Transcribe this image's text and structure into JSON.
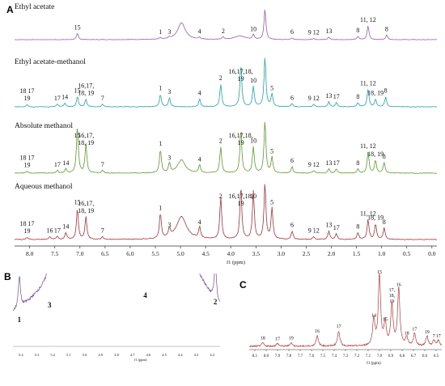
{
  "panel_letters": [
    "A",
    "B",
    "C"
  ],
  "axis_unit": "f1 (ppm)",
  "colors": {
    "ethyl_acetate": "#9b59b6",
    "ethyl_acetate_methanol": "#1ba7b0",
    "absolute_methanol": "#5a9e2c",
    "aqueous_methanol": "#b0303a",
    "panel_b": "#7a4aa6",
    "panel_c": "#c23a3a"
  },
  "chart_data": [
    {
      "type": "line",
      "panel": "A",
      "xlabel": "f1 (ppm)",
      "xlim": [
        8.3,
        -0.1
      ],
      "x_ticks": [
        "8.0",
        "7.5",
        "7.0",
        "6.5",
        "6.0",
        "5.5",
        "5.0",
        "4.5",
        "4.0",
        "3.5",
        "3.0",
        "2.5",
        "2.0",
        "1.5",
        "1.0",
        "0.5",
        "0.0"
      ],
      "series": [
        {
          "name": "Ethyl acetate",
          "peaks": [
            {
              "x": 7.05,
              "h": 0.2,
              "label": "15"
            },
            {
              "x": 5.4,
              "h": 0.05,
              "label": "1"
            },
            {
              "x": 5.22,
              "h": 0.05,
              "label": "3"
            },
            {
              "x": 4.98,
              "h": 0.55,
              "w": 0.09
            },
            {
              "x": 4.62,
              "h": 0.06,
              "label": "4"
            },
            {
              "x": 4.15,
              "h": 0.08,
              "label": "2"
            },
            {
              "x": 3.82,
              "h": 0.12,
              "w": 0.12
            },
            {
              "x": 3.55,
              "h": 0.15,
              "label": "10"
            },
            {
              "x": 3.32,
              "h": 1.0
            },
            {
              "x": 2.78,
              "h": 0.05,
              "label": "6"
            },
            {
              "x": 2.35,
              "h": 0.04,
              "label": "9 12"
            },
            {
              "x": 2.05,
              "h": 0.08,
              "label": "13"
            },
            {
              "x": 1.47,
              "h": 0.1,
              "label": "8"
            },
            {
              "x": 1.27,
              "h": 0.45,
              "label": "11, 12"
            },
            {
              "x": 0.9,
              "h": 0.15,
              "label": "8"
            }
          ]
        },
        {
          "name": "Ethyl acetate-methanol",
          "peaks": [
            {
              "x": 8.05,
              "h": 0.05,
              "label": "18 17 19"
            },
            {
              "x": 7.45,
              "h": 0.05,
              "label": "17"
            },
            {
              "x": 7.3,
              "h": 0.07,
              "label": "14"
            },
            {
              "x": 7.05,
              "h": 0.2,
              "label": "15"
            },
            {
              "x": 6.88,
              "h": 0.15,
              "label": "16,17, 18, 19"
            },
            {
              "x": 6.55,
              "h": 0.05,
              "label": "7"
            },
            {
              "x": 5.4,
              "h": 0.25,
              "label": "1"
            },
            {
              "x": 5.22,
              "h": 0.18,
              "label": "3"
            },
            {
              "x": 4.62,
              "h": 0.15,
              "label": "4"
            },
            {
              "x": 4.2,
              "h": 0.45,
              "label": "2"
            },
            {
              "x": 3.8,
              "h": 0.85,
              "label": "16,17,18, 19"
            },
            {
              "x": 3.55,
              "h": 0.4,
              "label": "10"
            },
            {
              "x": 3.32,
              "h": 1.0
            },
            {
              "x": 3.18,
              "h": 0.25,
              "label": "5"
            },
            {
              "x": 2.78,
              "h": 0.06,
              "label": "6"
            },
            {
              "x": 2.35,
              "h": 0.05,
              "label": "9 12"
            },
            {
              "x": 2.05,
              "h": 0.1,
              "label": "13"
            },
            {
              "x": 1.9,
              "h": 0.08,
              "label": "17"
            },
            {
              "x": 1.47,
              "h": 0.08,
              "label": "8"
            },
            {
              "x": 1.27,
              "h": 0.35,
              "label": "11, 12"
            },
            {
              "x": 1.12,
              "h": 0.15,
              "label": "18, 19"
            },
            {
              "x": 0.92,
              "h": 0.2,
              "label": "8"
            }
          ]
        },
        {
          "name": "Absolute methanol",
          "peaks": [
            {
              "x": 8.05,
              "h": 0.04,
              "label": "18 17 19"
            },
            {
              "x": 7.45,
              "h": 0.05,
              "label": "17"
            },
            {
              "x": 7.28,
              "h": 0.08,
              "label": "14"
            },
            {
              "x": 7.05,
              "h": 0.9,
              "label": "15"
            },
            {
              "x": 6.88,
              "h": 0.55,
              "label": "16,17, 18, 19"
            },
            {
              "x": 6.55,
              "h": 0.05,
              "label": "7"
            },
            {
              "x": 5.4,
              "h": 0.45,
              "label": "1"
            },
            {
              "x": 5.22,
              "h": 0.18,
              "label": "3"
            },
            {
              "x": 4.98,
              "h": 0.25,
              "w": 0.09
            },
            {
              "x": 4.62,
              "h": 0.15,
              "label": "4"
            },
            {
              "x": 4.2,
              "h": 0.5,
              "label": "2"
            },
            {
              "x": 3.8,
              "h": 0.85,
              "label": "16,17,18, 19"
            },
            {
              "x": 3.55,
              "h": 0.5,
              "label": "10"
            },
            {
              "x": 3.32,
              "h": 1.0
            },
            {
              "x": 3.18,
              "h": 0.3,
              "label": "5"
            },
            {
              "x": 2.78,
              "h": 0.12,
              "label": "6"
            },
            {
              "x": 2.35,
              "h": 0.05,
              "label": "9 12"
            },
            {
              "x": 2.05,
              "h": 0.08,
              "label": "13"
            },
            {
              "x": 1.9,
              "h": 0.08,
              "label": "17"
            },
            {
              "x": 1.47,
              "h": 0.08,
              "label": "8"
            },
            {
              "x": 1.27,
              "h": 0.4,
              "label": "11, 12"
            },
            {
              "x": 1.12,
              "h": 0.25,
              "label": "18, 19"
            },
            {
              "x": 0.95,
              "h": 0.2,
              "label": "8"
            }
          ]
        },
        {
          "name": "Aqueous methanol",
          "peaks": [
            {
              "x": 8.05,
              "h": 0.04,
              "label": "18 17 19"
            },
            {
              "x": 7.6,
              "h": 0.05,
              "label": "16"
            },
            {
              "x": 7.45,
              "h": 0.05,
              "label": "17"
            },
            {
              "x": 7.28,
              "h": 0.12,
              "label": "14"
            },
            {
              "x": 7.05,
              "h": 0.55,
              "label": "15"
            },
            {
              "x": 6.88,
              "h": 0.4,
              "label": "16,17, 18, 19"
            },
            {
              "x": 6.55,
              "h": 0.05,
              "label": "7"
            },
            {
              "x": 5.4,
              "h": 0.45,
              "label": "1"
            },
            {
              "x": 5.22,
              "h": 0.15,
              "label": "3"
            },
            {
              "x": 4.98,
              "h": 0.4,
              "w": 0.12
            },
            {
              "x": 4.62,
              "h": 0.2,
              "label": "4"
            },
            {
              "x": 4.2,
              "h": 0.75,
              "label": "2"
            },
            {
              "x": 3.8,
              "h": 0.95,
              "label": "16,17,18, 19"
            },
            {
              "x": 3.55,
              "h": 0.85,
              "label": "10"
            },
            {
              "x": 3.32,
              "h": 1.0
            },
            {
              "x": 3.18,
              "h": 0.55,
              "label": "5"
            },
            {
              "x": 2.78,
              "h": 0.15,
              "label": "6"
            },
            {
              "x": 2.35,
              "h": 0.05,
              "label": "9 12"
            },
            {
              "x": 2.05,
              "h": 0.15,
              "label": "13"
            },
            {
              "x": 1.9,
              "h": 0.1,
              "label": "17"
            },
            {
              "x": 1.47,
              "h": 0.12,
              "label": "8"
            },
            {
              "x": 1.27,
              "h": 0.35,
              "label": "11, 12"
            },
            {
              "x": 1.12,
              "h": 0.28,
              "label": "18, 19"
            },
            {
              "x": 0.95,
              "h": 0.2,
              "label": "8"
            }
          ]
        }
      ]
    },
    {
      "type": "line",
      "panel": "B",
      "xlim": [
        5.45,
        4.15
      ],
      "x_ticks": [
        "5.4",
        "5.3",
        "5.2",
        "5.1",
        "5.0",
        "4.9",
        "4.8",
        "4.7",
        "4.6",
        "4.5",
        "4.4",
        "4.3",
        "4.2"
      ],
      "series": [
        {
          "name": "",
          "peaks": [
            {
              "x": 5.41,
              "h": 0.55,
              "label": "1"
            },
            {
              "x": 5.22,
              "h": 0.72,
              "label": "3"
            },
            {
              "x": 4.62,
              "h": 0.62,
              "label": "4"
            },
            {
              "x": 4.18,
              "h": 0.65,
              "label": "2"
            }
          ]
        }
      ]
    },
    {
      "type": "line",
      "panel": "C",
      "xlim": [
        8.15,
        6.45
      ],
      "x_ticks": [
        "8.1",
        "8.0",
        "7.9",
        "7.8",
        "7.7",
        "7.6",
        "7.5",
        "7.4",
        "7.3",
        "7.2",
        "7.1",
        "7.0",
        "6.9",
        "6.8",
        "6.7",
        "6.6",
        "6.5"
      ],
      "series": [
        {
          "name": "",
          "peaks": [
            {
              "x": 8.03,
              "h": 0.05,
              "label": "18"
            },
            {
              "x": 7.9,
              "h": 0.04,
              "label": "17"
            },
            {
              "x": 7.78,
              "h": 0.05,
              "label": "19"
            },
            {
              "x": 7.55,
              "h": 0.15,
              "label": "16"
            },
            {
              "x": 7.36,
              "h": 0.22,
              "label": "17"
            },
            {
              "x": 7.05,
              "h": 0.38,
              "label": "14"
            },
            {
              "x": 7.0,
              "h": 1.0,
              "label": "15"
            },
            {
              "x": 6.95,
              "h": 0.32,
              "label": "15"
            },
            {
              "x": 6.89,
              "h": 0.58,
              "label": "17, 18, 19"
            },
            {
              "x": 6.83,
              "h": 0.82,
              "label": "16"
            },
            {
              "x": 6.76,
              "h": 0.12,
              "label": "18"
            },
            {
              "x": 6.69,
              "h": 0.18,
              "label": "17"
            },
            {
              "x": 6.58,
              "h": 0.14,
              "label": "19"
            },
            {
              "x": 6.52,
              "h": 0.08,
              "label": "7"
            },
            {
              "x": 6.48,
              "h": 0.08,
              "label": "17"
            }
          ]
        }
      ]
    }
  ]
}
